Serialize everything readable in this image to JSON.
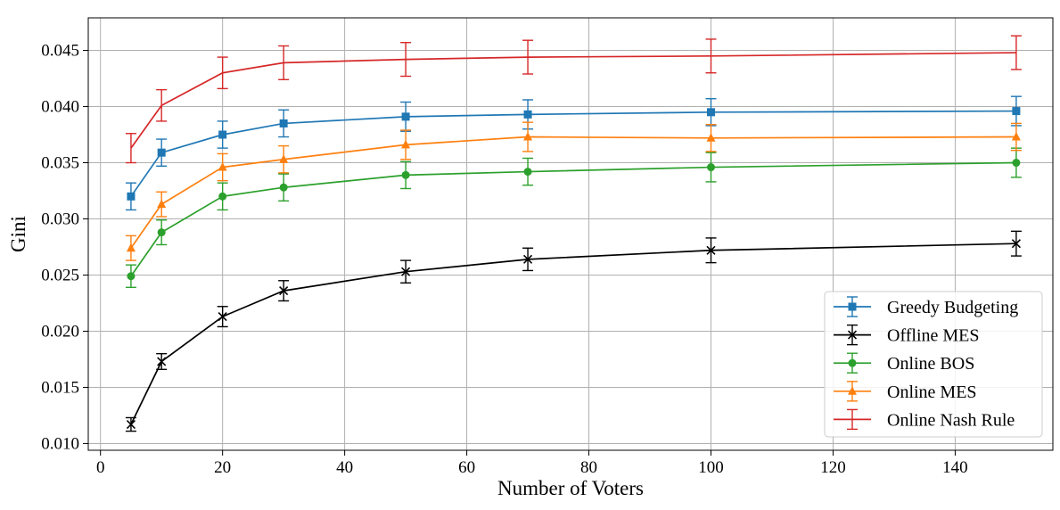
{
  "chart_data": {
    "type": "line",
    "title": "",
    "xlabel": "Number of Voters",
    "ylabel": "Gini",
    "xlim": [
      -2,
      156
    ],
    "ylim": [
      0.0094,
      0.0479
    ],
    "x_ticks": [
      0,
      20,
      40,
      60,
      80,
      100,
      120,
      140
    ],
    "x_tick_labels": [
      "0",
      "20",
      "40",
      "60",
      "80",
      "100",
      "120",
      "140"
    ],
    "y_ticks": [
      0.01,
      0.015,
      0.02,
      0.025,
      0.03,
      0.035,
      0.04,
      0.045
    ],
    "y_tick_labels": [
      "0.010",
      "0.015",
      "0.020",
      "0.025",
      "0.030",
      "0.035",
      "0.040",
      "0.045"
    ],
    "grid": true,
    "legend_position": "lower-right",
    "x": [
      5,
      10,
      20,
      30,
      50,
      70,
      100,
      150
    ],
    "series": [
      {
        "name": "Greedy Budgeting",
        "color": "#1f77b4",
        "marker": "square",
        "values": [
          0.032,
          0.0359,
          0.0375,
          0.0385,
          0.0391,
          0.0393,
          0.0395,
          0.0396
        ],
        "errors": [
          0.0012,
          0.0012,
          0.0012,
          0.0012,
          0.0013,
          0.0013,
          0.0012,
          0.0013
        ]
      },
      {
        "name": "Offline MES",
        "color": "#000000",
        "marker": "x",
        "values": [
          0.0117,
          0.0173,
          0.0213,
          0.0236,
          0.0253,
          0.0264,
          0.0272,
          0.0278
        ],
        "errors": [
          0.0006,
          0.0007,
          0.0009,
          0.0009,
          0.001,
          0.001,
          0.0011,
          0.0011
        ]
      },
      {
        "name": "Online BOS",
        "color": "#2ca02c",
        "marker": "circle",
        "values": [
          0.0249,
          0.0288,
          0.032,
          0.0328,
          0.0339,
          0.0342,
          0.0346,
          0.035
        ],
        "errors": [
          0.001,
          0.0011,
          0.0012,
          0.0012,
          0.0012,
          0.0012,
          0.0013,
          0.0013
        ]
      },
      {
        "name": "Online MES",
        "color": "#ff7f0e",
        "marker": "triangle-up",
        "values": [
          0.0274,
          0.0313,
          0.0346,
          0.0353,
          0.0366,
          0.0373,
          0.0372,
          0.0373
        ],
        "errors": [
          0.0011,
          0.0011,
          0.0012,
          0.0012,
          0.0013,
          0.0013,
          0.0012,
          0.0012
        ]
      },
      {
        "name": "Online Nash Rule",
        "color": "#d62728",
        "marker": "none",
        "values": [
          0.0363,
          0.0401,
          0.043,
          0.0439,
          0.0442,
          0.0444,
          0.0445,
          0.0448
        ],
        "errors": [
          0.0013,
          0.0014,
          0.0014,
          0.0015,
          0.0015,
          0.0015,
          0.0015,
          0.0015
        ]
      }
    ]
  }
}
